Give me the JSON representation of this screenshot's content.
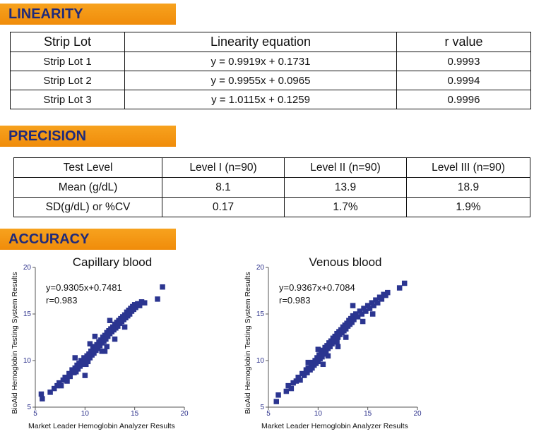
{
  "linearity": {
    "banner": "LINEARITY",
    "headers": [
      "Strip Lot",
      "Linearity equation",
      "r value"
    ],
    "rows": [
      [
        "Strip Lot 1",
        "y = 0.9919x + 0.1731",
        "0.9993"
      ],
      [
        "Strip Lot 2",
        "y = 0.9955x + 0.0965",
        "0.9994"
      ],
      [
        "Strip Lot 3",
        "y = 1.0115x + 0.1259",
        "0.9996"
      ]
    ]
  },
  "precision": {
    "banner": "PRECISION",
    "headers": [
      "Test Level",
      "Level I (n=90)",
      "Level II (n=90)",
      "Level III (n=90)"
    ],
    "rows": [
      [
        "Mean (g/dL)",
        "8.1",
        "13.9",
        "18.9"
      ],
      [
        "SD(g/dL) or %CV",
        "0.17",
        "1.7%",
        "1.9%"
      ]
    ]
  },
  "accuracy": {
    "banner": "ACCURACY"
  },
  "colors": {
    "banner_bg": "#f39414",
    "banner_text": "#1f2a7a",
    "point": "#2b3590"
  },
  "chart_data": [
    {
      "type": "scatter",
      "title": "Capillary blood",
      "equation": "y=0.9305x+0.7481",
      "r": "r=0.983",
      "xlabel": "Market Leader Hemoglobin Analyzer Results",
      "ylabel": "BioAid Hemoglobin Testing System Results",
      "xlim": [
        5,
        20
      ],
      "ylim": [
        5,
        20
      ],
      "xticks": [
        5,
        10,
        15,
        20
      ],
      "yticks": [
        5,
        10,
        15,
        20
      ],
      "points": [
        [
          5.6,
          6.4
        ],
        [
          5.7,
          5.9
        ],
        [
          6.5,
          6.6
        ],
        [
          6.9,
          7.0
        ],
        [
          7.2,
          7.3
        ],
        [
          7.4,
          7.6
        ],
        [
          7.6,
          7.3
        ],
        [
          7.8,
          7.9
        ],
        [
          8.0,
          8.2
        ],
        [
          8.2,
          7.8
        ],
        [
          8.4,
          8.6
        ],
        [
          8.5,
          8.3
        ],
        [
          8.7,
          9.0
        ],
        [
          8.9,
          8.7
        ],
        [
          9.0,
          9.2
        ],
        [
          9.1,
          8.8
        ],
        [
          9.2,
          9.5
        ],
        [
          9.3,
          9.1
        ],
        [
          9.4,
          9.7
        ],
        [
          9.5,
          9.4
        ],
        [
          9.6,
          10.0
        ],
        [
          9.7,
          9.6
        ],
        [
          9.8,
          9.9
        ],
        [
          9.9,
          10.3
        ],
        [
          10.0,
          8.4
        ],
        [
          10.0,
          10.1
        ],
        [
          10.1,
          9.6
        ],
        [
          10.2,
          10.5
        ],
        [
          10.3,
          9.9
        ],
        [
          10.4,
          10.7
        ],
        [
          10.5,
          10.3
        ],
        [
          10.6,
          11.0
        ],
        [
          10.7,
          10.6
        ],
        [
          10.8,
          11.3
        ],
        [
          10.9,
          10.8
        ],
        [
          11.0,
          11.5
        ],
        [
          11.1,
          11.1
        ],
        [
          11.2,
          11.7
        ],
        [
          11.3,
          11.3
        ],
        [
          11.4,
          12.0
        ],
        [
          11.5,
          11.6
        ],
        [
          11.6,
          12.2
        ],
        [
          11.7,
          11.9
        ],
        [
          11.8,
          12.5
        ],
        [
          11.9,
          12.1
        ],
        [
          12.0,
          11.0
        ],
        [
          12.0,
          12.7
        ],
        [
          12.1,
          12.3
        ],
        [
          12.2,
          13.0
        ],
        [
          12.3,
          12.6
        ],
        [
          12.4,
          13.2
        ],
        [
          12.5,
          12.9
        ],
        [
          12.6,
          13.4
        ],
        [
          12.7,
          13.1
        ],
        [
          12.8,
          13.6
        ],
        [
          12.9,
          13.3
        ],
        [
          13.0,
          13.9
        ],
        [
          13.1,
          13.5
        ],
        [
          13.2,
          14.1
        ],
        [
          13.3,
          13.7
        ],
        [
          13.4,
          14.3
        ],
        [
          13.5,
          14.0
        ],
        [
          13.6,
          14.5
        ],
        [
          13.7,
          14.2
        ],
        [
          13.8,
          14.7
        ],
        [
          13.9,
          14.4
        ],
        [
          14.0,
          14.9
        ],
        [
          14.1,
          14.6
        ],
        [
          14.2,
          15.2
        ],
        [
          14.3,
          14.8
        ],
        [
          14.4,
          15.4
        ],
        [
          14.5,
          15.0
        ],
        [
          14.6,
          15.6
        ],
        [
          14.7,
          15.3
        ],
        [
          14.8,
          15.8
        ],
        [
          14.9,
          15.5
        ],
        [
          15.0,
          16.0
        ],
        [
          15.1,
          15.7
        ],
        [
          15.3,
          16.1
        ],
        [
          15.5,
          15.9
        ],
        [
          15.7,
          16.3
        ],
        [
          16.0,
          16.2
        ],
        [
          13.0,
          12.3
        ],
        [
          11.0,
          12.6
        ],
        [
          10.5,
          11.8
        ],
        [
          12.5,
          14.3
        ],
        [
          9.0,
          10.3
        ],
        [
          17.3,
          16.6
        ],
        [
          17.8,
          17.9
        ],
        [
          12.2,
          11.5
        ],
        [
          14.0,
          13.6
        ],
        [
          11.7,
          11.0
        ]
      ]
    },
    {
      "type": "scatter",
      "title": "Venous blood",
      "equation": "y=0.9367x+0.7084",
      "r": "r=0.983",
      "xlabel": "Market Leader Hemoglobin Analyzer Results",
      "ylabel": "BioAid Hemoglobin Testing System Results",
      "xlim": [
        5,
        20
      ],
      "ylim": [
        5,
        20
      ],
      "xticks": [
        5,
        10,
        15,
        20
      ],
      "yticks": [
        5,
        10,
        15,
        20
      ],
      "points": [
        [
          5.8,
          5.6
        ],
        [
          6.0,
          6.3
        ],
        [
          6.8,
          6.7
        ],
        [
          7.0,
          7.3
        ],
        [
          7.3,
          7.0
        ],
        [
          7.5,
          7.6
        ],
        [
          7.8,
          7.8
        ],
        [
          8.0,
          8.2
        ],
        [
          8.2,
          7.9
        ],
        [
          8.4,
          8.6
        ],
        [
          8.6,
          8.4
        ],
        [
          8.8,
          9.0
        ],
        [
          8.9,
          8.7
        ],
        [
          9.0,
          9.2
        ],
        [
          9.2,
          9.0
        ],
        [
          9.3,
          9.4
        ],
        [
          9.4,
          9.2
        ],
        [
          9.5,
          9.8
        ],
        [
          9.6,
          9.5
        ],
        [
          9.7,
          10.0
        ],
        [
          9.8,
          9.7
        ],
        [
          9.9,
          10.3
        ],
        [
          10.0,
          9.9
        ],
        [
          10.1,
          10.6
        ],
        [
          10.2,
          10.2
        ],
        [
          10.3,
          10.8
        ],
        [
          10.4,
          10.4
        ],
        [
          10.5,
          11.1
        ],
        [
          10.6,
          10.7
        ],
        [
          10.7,
          11.4
        ],
        [
          10.8,
          11.0
        ],
        [
          10.9,
          11.6
        ],
        [
          11.0,
          11.3
        ],
        [
          11.1,
          11.9
        ],
        [
          11.2,
          11.5
        ],
        [
          11.3,
          12.1
        ],
        [
          11.4,
          11.8
        ],
        [
          11.5,
          12.4
        ],
        [
          11.6,
          12.0
        ],
        [
          11.7,
          12.6
        ],
        [
          11.8,
          12.3
        ],
        [
          11.9,
          12.9
        ],
        [
          12.0,
          12.5
        ],
        [
          12.1,
          13.1
        ],
        [
          12.2,
          12.8
        ],
        [
          12.3,
          13.3
        ],
        [
          12.4,
          13.0
        ],
        [
          12.5,
          13.6
        ],
        [
          12.6,
          13.2
        ],
        [
          12.7,
          13.8
        ],
        [
          12.8,
          13.4
        ],
        [
          12.9,
          14.0
        ],
        [
          13.0,
          13.7
        ],
        [
          13.1,
          14.3
        ],
        [
          13.2,
          13.9
        ],
        [
          13.3,
          14.5
        ],
        [
          13.4,
          14.1
        ],
        [
          13.5,
          14.8
        ],
        [
          13.6,
          14.4
        ],
        [
          13.8,
          15.0
        ],
        [
          14.0,
          14.7
        ],
        [
          14.2,
          15.3
        ],
        [
          14.4,
          15.0
        ],
        [
          14.6,
          15.6
        ],
        [
          14.8,
          15.3
        ],
        [
          15.0,
          15.9
        ],
        [
          15.2,
          15.6
        ],
        [
          15.4,
          16.2
        ],
        [
          15.6,
          15.9
        ],
        [
          15.8,
          16.5
        ],
        [
          16.0,
          16.2
        ],
        [
          16.2,
          16.8
        ],
        [
          16.4,
          16.6
        ],
        [
          16.6,
          17.1
        ],
        [
          16.8,
          17.0
        ],
        [
          17.0,
          17.3
        ],
        [
          13.5,
          15.9
        ],
        [
          12.0,
          11.5
        ],
        [
          10.5,
          9.6
        ],
        [
          9.0,
          9.8
        ],
        [
          14.5,
          14.2
        ],
        [
          18.2,
          17.8
        ],
        [
          18.7,
          18.3
        ],
        [
          11.0,
          10.5
        ],
        [
          12.8,
          12.5
        ],
        [
          15.5,
          15.0
        ],
        [
          10.0,
          11.2
        ],
        [
          11.9,
          12.0
        ]
      ]
    }
  ]
}
